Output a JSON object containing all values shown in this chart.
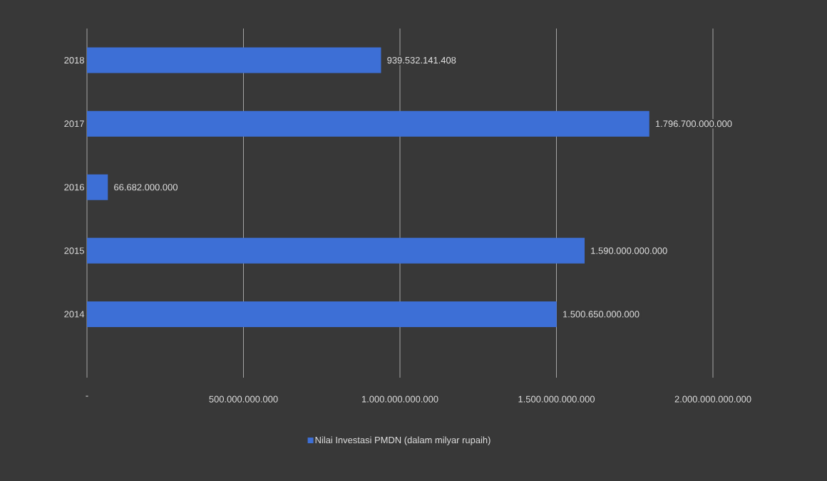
{
  "chart_data": {
    "type": "bar",
    "orientation": "horizontal",
    "categories": [
      "2018",
      "2017",
      "2016",
      "2015",
      "2014"
    ],
    "series": [
      {
        "name": "Nilai Investasi PMDN (dalam milyar rupaih)",
        "color": "#3d6fd6",
        "values": [
          939532141408,
          1796700000000,
          66682000000,
          1590000000000,
          1500650000000
        ]
      }
    ],
    "value_labels": [
      "939.532.141.408",
      "1.796.700.000.000",
      "66.682.000.000",
      "1.590.000.000.000",
      "1.500.650.000.000"
    ],
    "xlim": [
      0,
      2000000000000
    ],
    "xticks": [
      {
        "value": 0,
        "label": "-"
      },
      {
        "value": 500000000000,
        "label": "500.000.000.000"
      },
      {
        "value": 1000000000000,
        "label": "1.000.000.000.000"
      },
      {
        "value": 1500000000000,
        "label": "1.500.000.000.000"
      },
      {
        "value": 2000000000000,
        "label": "2.000.000.000.000"
      }
    ],
    "grid": "x",
    "legend": "bottom"
  }
}
